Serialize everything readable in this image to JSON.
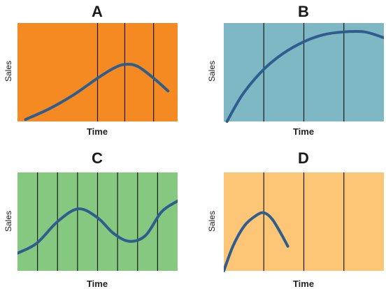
{
  "chart_data": [
    {
      "type": "line",
      "title": "A",
      "xlabel": "Time",
      "ylabel": "Sales",
      "background": "#f58a22",
      "line_color": "#2f5e8e",
      "xlim": [
        0,
        100
      ],
      "ylim": [
        0,
        100
      ],
      "vlines": [
        50,
        67,
        85
      ],
      "x": [
        5,
        20,
        35,
        50,
        60,
        67,
        75,
        85,
        94
      ],
      "y": [
        2,
        13,
        27,
        44,
        54,
        58,
        56,
        44,
        31
      ]
    },
    {
      "type": "line",
      "title": "B",
      "xlabel": "Time",
      "ylabel": "Sales",
      "background": "#7db8c4",
      "line_color": "#2f5e8e",
      "xlim": [
        0,
        100
      ],
      "ylim": [
        0,
        100
      ],
      "vlines": [
        25,
        50,
        75
      ],
      "x": [
        2,
        12,
        25,
        37,
        50,
        62,
        75,
        88,
        100
      ],
      "y": [
        0,
        28,
        53,
        69,
        81,
        88,
        91,
        91,
        85
      ]
    },
    {
      "type": "line",
      "title": "C",
      "xlabel": "Time",
      "ylabel": "Sales",
      "background": "#85c981",
      "line_color": "#2f5e8e",
      "xlim": [
        0,
        100
      ],
      "ylim": [
        0,
        100
      ],
      "vlines": [
        12.5,
        25,
        37.5,
        50,
        62.5,
        75,
        87.5
      ],
      "x": [
        0,
        12,
        25,
        38,
        50,
        60,
        70,
        80,
        90,
        100
      ],
      "y": [
        18,
        28,
        50,
        63,
        54,
        38,
        30,
        36,
        60,
        71
      ]
    },
    {
      "type": "line",
      "title": "D",
      "xlabel": "Time",
      "ylabel": "Sales",
      "background": "#fcc676",
      "line_color": "#2f5e8e",
      "xlim": [
        0,
        100
      ],
      "ylim": [
        0,
        100
      ],
      "vlines": [
        25,
        50,
        75
      ],
      "x": [
        0,
        6,
        13,
        20,
        25,
        30,
        35,
        40
      ],
      "y": [
        0,
        26,
        46,
        56,
        59,
        53,
        40,
        25
      ]
    }
  ]
}
